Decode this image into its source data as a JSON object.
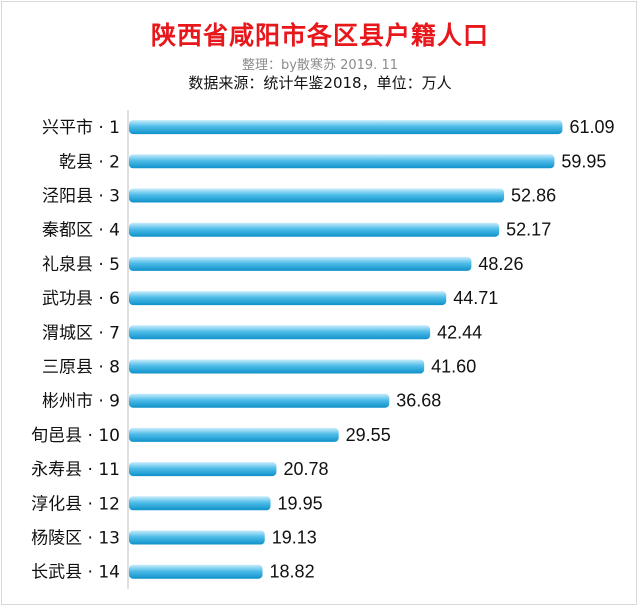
{
  "header": {
    "title": "陕西省咸阳市各区县户籍人口",
    "subtitle": "整理：by散寒苏  2019. 11",
    "source": "数据来源：统计年鉴2018，单位：万人"
  },
  "colors": {
    "bar_top": "#c9ecfb",
    "bar_mid": "#4fbde9",
    "bar_bottom": "#0f91c9",
    "title": "#e8171c"
  },
  "chart_data": {
    "type": "bar",
    "orientation": "horizontal",
    "categories": [
      "兴平市 · 1",
      "乾县 · 2",
      "泾阳县 · 3",
      "秦都区 · 4",
      "礼泉县 · 5",
      "武功县 · 6",
      "渭城区 · 7",
      "三原县 · 8",
      "彬州市 · 9",
      "旬邑县 · 10",
      "永寿县 · 11",
      "淳化县 · 12",
      "杨陵区 · 13",
      "长武县 · 14"
    ],
    "values": [
      61.09,
      59.95,
      52.86,
      52.17,
      48.26,
      44.71,
      42.44,
      41.6,
      36.68,
      29.55,
      20.78,
      19.95,
      19.13,
      18.82
    ],
    "value_labels": [
      "61.09",
      "59.95",
      "52.86",
      "52.17",
      "48.26",
      "44.71",
      "42.44",
      "41.60",
      "36.68",
      "29.55",
      "20.78",
      "19.95",
      "19.13",
      "18.82"
    ],
    "xlim": [
      0,
      63
    ],
    "grid": false,
    "legend": "none"
  }
}
